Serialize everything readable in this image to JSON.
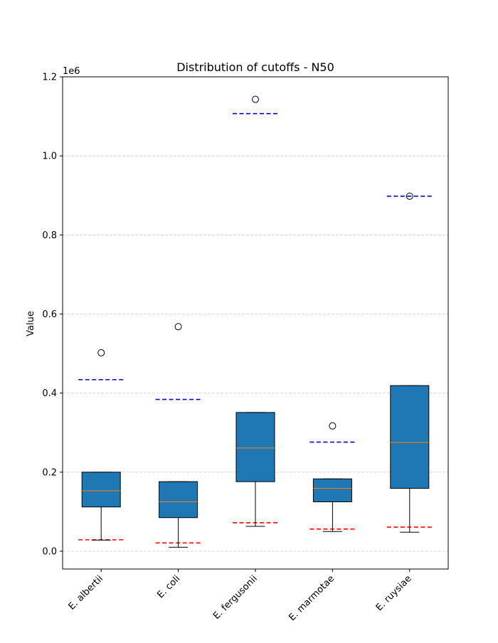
{
  "chart_data": {
    "type": "box",
    "title": "Distribution of cutoffs - N50",
    "xlabel": "",
    "ylabel": "Value",
    "y_offset_label": "1e6",
    "y_scale_factor": 1000000,
    "ylim": [
      -45000,
      1200000
    ],
    "yticks": [
      0,
      200000,
      400000,
      600000,
      800000,
      1000000,
      1200000
    ],
    "ytick_labels": [
      "0.0",
      "0.2",
      "0.4",
      "0.6",
      "0.8",
      "1.0",
      "1.2"
    ],
    "grid": "horizontal dashed",
    "categories": [
      "E. albertii",
      "E. coli",
      "E. fergusonii",
      "E. marmotae",
      "E. ruysiae"
    ],
    "boxes": [
      {
        "category": "E. albertii",
        "whisker_low": 28000,
        "q1": 112000,
        "median": 153000,
        "q3": 200000,
        "whisker_high": 200000,
        "outliers": [
          502000
        ],
        "lower_cutoff": 29000,
        "upper_cutoff": 434000
      },
      {
        "category": "E. coli",
        "whisker_low": 10000,
        "q1": 85000,
        "median": 125000,
        "q3": 176000,
        "whisker_high": 176000,
        "outliers": [
          568000
        ],
        "lower_cutoff": 21000,
        "upper_cutoff": 384000
      },
      {
        "category": "E. fergusonii",
        "whisker_low": 63000,
        "q1": 176000,
        "median": 261000,
        "q3": 351000,
        "whisker_high": 351000,
        "outliers": [
          1143000
        ],
        "lower_cutoff": 72000,
        "upper_cutoff": 1107000
      },
      {
        "category": "E. marmotae",
        "whisker_low": 50000,
        "q1": 125000,
        "median": 159000,
        "q3": 183000,
        "whisker_high": 183000,
        "outliers": [
          317000
        ],
        "lower_cutoff": 56000,
        "upper_cutoff": 276000
      },
      {
        "category": "E. ruysiae",
        "whisker_low": 48000,
        "q1": 159000,
        "median": 275000,
        "q3": 419000,
        "whisker_high": 419000,
        "outliers": [
          898000
        ],
        "lower_cutoff": 61000,
        "upper_cutoff": 898000
      }
    ],
    "colors": {
      "box_fill": "#1f77b4",
      "median": "#ff7f0e",
      "upper_cutoff": "#0000cc",
      "lower_cutoff": "#ff0000",
      "grid": "#cccccc"
    }
  }
}
